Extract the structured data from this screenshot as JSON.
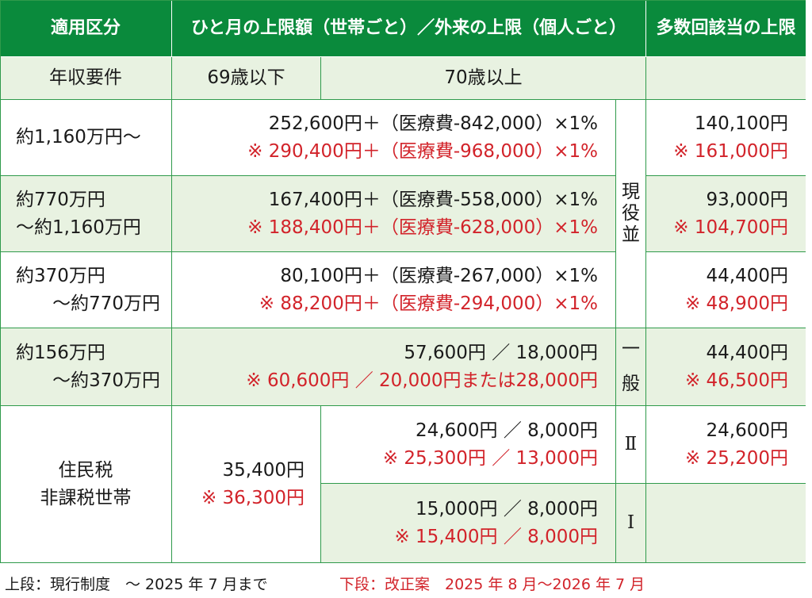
{
  "header": {
    "category": "適用区分",
    "monthly_limit": "ひと月の上限額（世帯ごと）／外来の上限（個人ごと）",
    "multiple": "多数回該当の上限"
  },
  "subheader": {
    "income": "年収要件",
    "under69": "69歳以下",
    "over70": "70歳以上"
  },
  "rows": [
    {
      "income_l1": "約1,160万円〜",
      "current": "252,600円＋（医療費-842,000）×1%",
      "proposed": "※ 290,400円＋（医療費-968,000）×1%",
      "multi_current": "140,100円",
      "multi_proposed": "※ 161,000円"
    },
    {
      "income_l1": "約770万円",
      "income_l2": "〜約1,160万円",
      "current": "167,400円＋（医療費-558,000）×1%",
      "proposed": "※ 188,400円＋（医療費-628,000）×1%",
      "multi_current": "93,000円",
      "multi_proposed": "※ 104,700円"
    },
    {
      "income_l1": "約370万円",
      "income_l2": "〜約770万円",
      "current": "80,100円＋（医療費-267,000）×1%",
      "proposed": "※ 88,200円＋（医療費-294,000）×1%",
      "multi_current": "44,400円",
      "multi_proposed": "※ 48,900円"
    },
    {
      "income_l1": "約156万円",
      "income_l2": "〜約370万円",
      "current": "57,600円 ／ 18,000円",
      "proposed": "※ 60,600円 ／ 20,000円または28,000円",
      "multi_current": "44,400円",
      "multi_proposed": "※ 46,500円"
    }
  ],
  "genekinami": [
    "現",
    "役",
    "並"
  ],
  "ippan": [
    "一",
    "般"
  ],
  "exempt": {
    "label_l1": "住民税",
    "label_l2": "非課税世帯",
    "under69_current": "35,400円",
    "under69_proposed": "※ 36,300円",
    "tier2": {
      "label": "Ⅱ",
      "current": "24,600円 ／ 8,000円",
      "proposed": "※ 25,300円 ／ 13,000円",
      "multi_current": "24,600円",
      "multi_proposed": "※ 25,200円"
    },
    "tier1": {
      "label": "Ⅰ",
      "current": "15,000円 ／ 8,000円",
      "proposed": "※ 15,400円 ／ 8,000円"
    }
  },
  "footer": {
    "current_note": "上段：現行制度　〜 2025 年 7 月まで",
    "proposed_note": "下段：改正案　2025 年 8 月〜2026 年 7 月"
  },
  "colors": {
    "header_green": "#0a8a3c",
    "row_tint": "#e8f2e1",
    "border": "#2f9a4b",
    "proposed_red": "#d2232a"
  }
}
